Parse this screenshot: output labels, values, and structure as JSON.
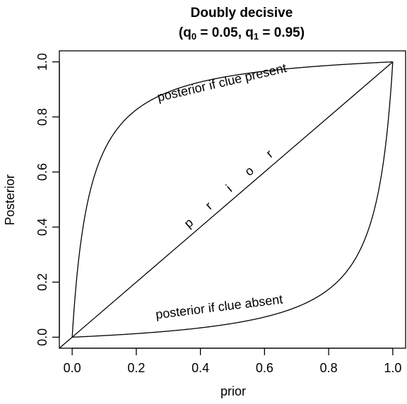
{
  "chart_data": {
    "type": "line",
    "title_line1": "Doubly decisive",
    "title_line2": {
      "prefix": "(q",
      "sub0": "0",
      "mid": " = 0.05, q",
      "sub1": "1",
      "suffix": " = 0.95)"
    },
    "xlabel": "prior",
    "ylabel": "Posterior",
    "xlim": [
      -0.04,
      1.04
    ],
    "ylim": [
      -0.04,
      1.04
    ],
    "x_ticks": [
      {
        "value": 0.0,
        "label": "0.0"
      },
      {
        "value": 0.2,
        "label": "0.2"
      },
      {
        "value": 0.4,
        "label": "0.4"
      },
      {
        "value": 0.6,
        "label": "0.6"
      },
      {
        "value": 0.8,
        "label": "0.8"
      },
      {
        "value": 1.0,
        "label": "1.0"
      }
    ],
    "y_ticks": [
      {
        "value": 0.0,
        "label": "0.0"
      },
      {
        "value": 0.2,
        "label": "0.2"
      },
      {
        "value": 0.4,
        "label": "0.4"
      },
      {
        "value": 0.6,
        "label": "0.6"
      },
      {
        "value": 0.8,
        "label": "0.8"
      },
      {
        "value": 1.0,
        "label": "1.0"
      }
    ],
    "grid": false,
    "q0": 0.05,
    "q1": 0.95,
    "series": [
      {
        "name": "posterior if clue present"
      },
      {
        "name": "posterior if clue absent"
      },
      {
        "name": "prior"
      }
    ],
    "annotations": {
      "present": "posterior if clue present",
      "absent": "posterior if clue absent",
      "prior_letters": [
        "p",
        "r",
        "i",
        "o",
        "r"
      ]
    },
    "colors": {
      "line": "#000000",
      "background": "#ffffff"
    }
  }
}
